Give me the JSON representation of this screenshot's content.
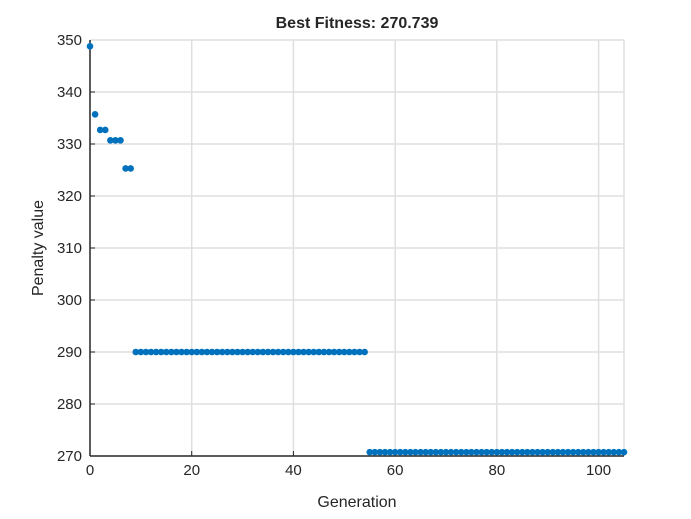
{
  "chart_data": {
    "type": "scatter",
    "title": "Best Fitness: 270.739",
    "xlabel": "Generation",
    "ylabel": "Penalty value",
    "xlim": [
      0,
      105
    ],
    "ylim": [
      270,
      350
    ],
    "xticks": [
      "0",
      "20",
      "40",
      "60",
      "80",
      "100"
    ],
    "yticks": [
      "270",
      "280",
      "290",
      "300",
      "310",
      "320",
      "330",
      "340",
      "350"
    ],
    "grid": true,
    "marker_color": "#0072BD",
    "segments": [
      {
        "x_from": 0,
        "x_to": 0,
        "y": 348.8
      },
      {
        "x_from": 1,
        "x_to": 1,
        "y": 335.7
      },
      {
        "x_from": 2,
        "x_to": 3,
        "y": 332.7
      },
      {
        "x_from": 4,
        "x_to": 6,
        "y": 330.7
      },
      {
        "x_from": 7,
        "x_to": 8,
        "y": 325.3
      },
      {
        "x_from": 9,
        "x_to": 54,
        "y": 290.0
      },
      {
        "x_from": 55,
        "x_to": 105,
        "y": 270.739
      }
    ]
  }
}
